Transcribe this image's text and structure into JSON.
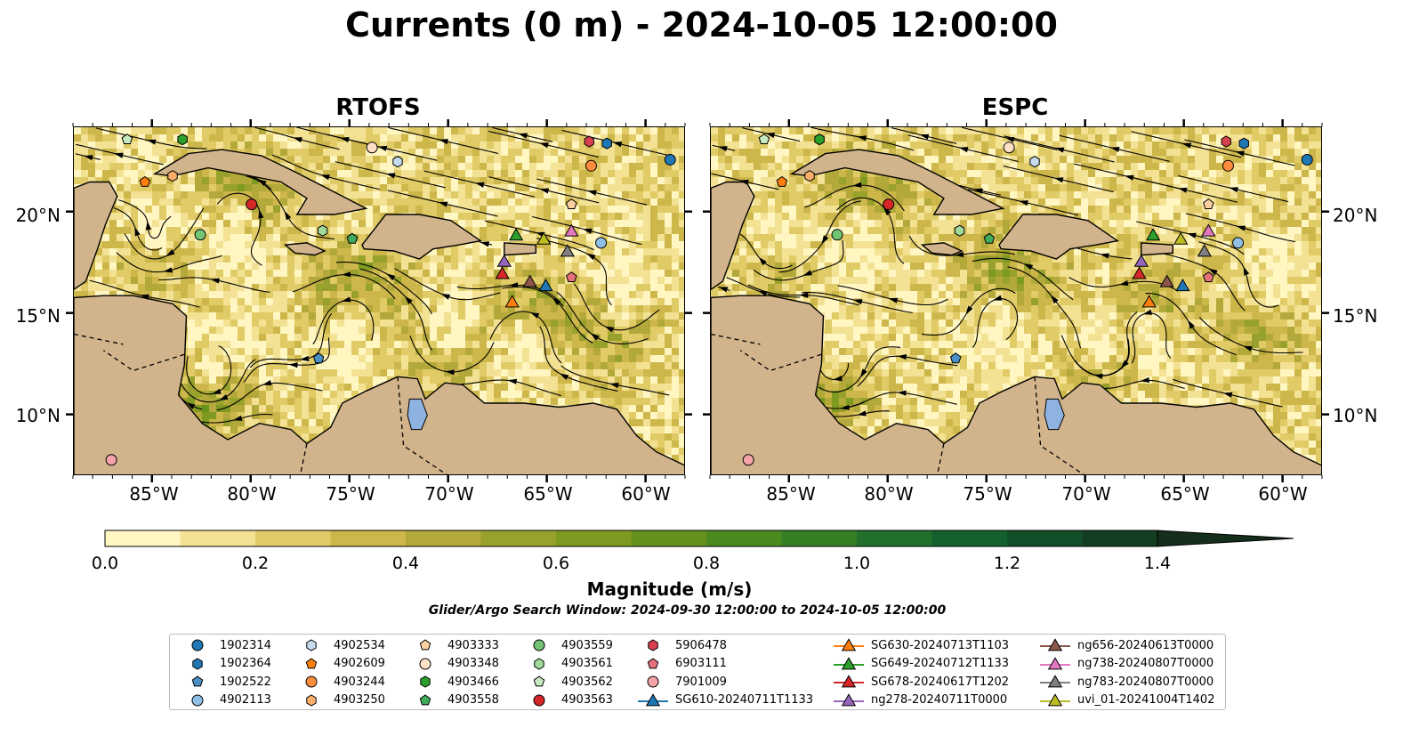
{
  "title": "Currents (0 m) - 2024-10-05 12:00:00",
  "panels": [
    {
      "title": "RTOFS"
    },
    {
      "title": "ESPC"
    }
  ],
  "lon_ticks": [
    "85°W",
    "80°W",
    "75°W",
    "70°W",
    "65°W",
    "60°W"
  ],
  "lat_ticks": [
    "20°N",
    "15°N",
    "10°N"
  ],
  "colorbar": {
    "label": "Magnitude (m/s)",
    "ticks": [
      "0.0",
      "0.2",
      "0.4",
      "0.6",
      "0.8",
      "1.0",
      "1.2",
      "1.4"
    ],
    "range": [
      0,
      1.5
    ],
    "extend": "max",
    "colors": [
      "#fff6c2",
      "#f3e294",
      "#e0cb66",
      "#cdb64a",
      "#b3a93a",
      "#98a12c",
      "#7f9a20",
      "#65911c",
      "#4b8a1f",
      "#367f25",
      "#22702c",
      "#14602e",
      "#124f29",
      "#143e22",
      "#152d1b"
    ]
  },
  "search_window": "Glider/Argo Search Window: 2024-09-30 12:00:00 to 2024-10-05 12:00:00",
  "legend": [
    {
      "label": "1902314",
      "marker": "circle",
      "color": "#1f77b4"
    },
    {
      "label": "1902364",
      "marker": "hexagon",
      "color": "#1f77b4"
    },
    {
      "label": "1902522",
      "marker": "pentagon",
      "color": "#4a90c4"
    },
    {
      "label": "4902113",
      "marker": "circle",
      "color": "#8fbfe4"
    },
    {
      "label": "4902534",
      "marker": "hexagon",
      "color": "#c6dbef"
    },
    {
      "label": "4902609",
      "marker": "pentagon",
      "color": "#ff7f0e"
    },
    {
      "label": "4903244",
      "marker": "circle",
      "color": "#fd8d3c"
    },
    {
      "label": "4903250",
      "marker": "hexagon",
      "color": "#fdae6b"
    },
    {
      "label": "4903333",
      "marker": "pentagon",
      "color": "#fdd0a2"
    },
    {
      "label": "4903348",
      "marker": "circle",
      "color": "#fde0c5"
    },
    {
      "label": "4903466",
      "marker": "hexagon",
      "color": "#2ca02c"
    },
    {
      "label": "4903558",
      "marker": "pentagon",
      "color": "#41ab5d"
    },
    {
      "label": "4903559",
      "marker": "circle",
      "color": "#74c476"
    },
    {
      "label": "4903561",
      "marker": "hexagon",
      "color": "#a1d99b"
    },
    {
      "label": "4903562",
      "marker": "pentagon",
      "color": "#c7e9c0"
    },
    {
      "label": "4903563",
      "marker": "circle",
      "color": "#d62728"
    },
    {
      "label": "5906478",
      "marker": "hexagon",
      "color": "#d6404e"
    },
    {
      "label": "6903111",
      "marker": "pentagon",
      "color": "#e3707a"
    },
    {
      "label": "7901009",
      "marker": "circle",
      "color": "#f4a3a8"
    },
    {
      "label": "SG610-20240711T1133",
      "marker": "triangle",
      "color": "#1f77b4",
      "line": true
    },
    {
      "label": "SG630-20240713T1103",
      "marker": "triangle",
      "color": "#ff7f0e",
      "line": true
    },
    {
      "label": "SG649-20240712T1133",
      "marker": "triangle",
      "color": "#2ca02c",
      "line": true
    },
    {
      "label": "SG678-20240617T1202",
      "marker": "triangle",
      "color": "#d62728",
      "line": true
    },
    {
      "label": "ng278-20240711T0000",
      "marker": "triangle",
      "color": "#9467bd",
      "line": true
    },
    {
      "label": "ng656-20240613T0000",
      "marker": "triangle",
      "color": "#8c564b",
      "line": true
    },
    {
      "label": "ng738-20240807T0000",
      "marker": "triangle",
      "color": "#e377c2",
      "line": true
    },
    {
      "label": "ng783-20240807T0000",
      "marker": "triangle",
      "color": "#7f7f7f",
      "line": true
    },
    {
      "label": "uvi_01-20241004T1402",
      "marker": "triangle",
      "color": "#bcbd22",
      "line": true
    }
  ],
  "map_extent": {
    "lon": [
      -89,
      -58
    ],
    "lat": [
      7,
      24.2
    ]
  },
  "land_color": "#d2b48c",
  "water_color": "#8fb3e0",
  "observations": [
    {
      "id": "1902314",
      "lon": -58.8,
      "lat": 22.6
    },
    {
      "id": "1902364",
      "lon": -62.0,
      "lat": 23.4
    },
    {
      "id": "1902522",
      "lon": -76.6,
      "lat": 12.8
    },
    {
      "id": "4902113",
      "lon": -62.3,
      "lat": 18.5
    },
    {
      "id": "4902534",
      "lon": -72.6,
      "lat": 22.5
    },
    {
      "id": "4902609",
      "lon": -85.4,
      "lat": 21.5
    },
    {
      "id": "4903244",
      "lon": -62.8,
      "lat": 22.3
    },
    {
      "id": "4903250",
      "lon": -84.0,
      "lat": 21.8
    },
    {
      "id": "4903333",
      "lon": -63.8,
      "lat": 20.4
    },
    {
      "id": "4903348",
      "lon": -73.9,
      "lat": 23.2
    },
    {
      "id": "4903466",
      "lon": -83.5,
      "lat": 23.6
    },
    {
      "id": "4903558",
      "lon": -74.9,
      "lat": 18.7
    },
    {
      "id": "4903559",
      "lon": -82.6,
      "lat": 18.9
    },
    {
      "id": "4903561",
      "lon": -76.4,
      "lat": 19.1
    },
    {
      "id": "4903562",
      "lon": -86.3,
      "lat": 23.6
    },
    {
      "id": "4903563",
      "lon": -80.0,
      "lat": 20.4
    },
    {
      "id": "5906478",
      "lon": -62.9,
      "lat": 23.5
    },
    {
      "id": "6903111",
      "lon": -63.8,
      "lat": 16.8
    },
    {
      "id": "7901009",
      "lon": -87.1,
      "lat": 7.8
    },
    {
      "id": "SG610-20240711T1133",
      "lon": -65.1,
      "lat": 16.4
    },
    {
      "id": "SG630-20240713T1103",
      "lon": -66.8,
      "lat": 15.6
    },
    {
      "id": "SG649-20240712T1133",
      "lon": -66.6,
      "lat": 18.9
    },
    {
      "id": "SG678-20240617T1202",
      "lon": -67.3,
      "lat": 17.0
    },
    {
      "id": "ng278-20240711T0000",
      "lon": -67.2,
      "lat": 17.6
    },
    {
      "id": "ng656-20240613T0000",
      "lon": -65.9,
      "lat": 16.6
    },
    {
      "id": "ng738-20240807T0000",
      "lon": -63.8,
      "lat": 19.1
    },
    {
      "id": "ng783-20240807T0000",
      "lon": -64.0,
      "lat": 18.1
    },
    {
      "id": "uvi_01-20241004T1402",
      "lon": -65.2,
      "lat": 18.7
    }
  ]
}
